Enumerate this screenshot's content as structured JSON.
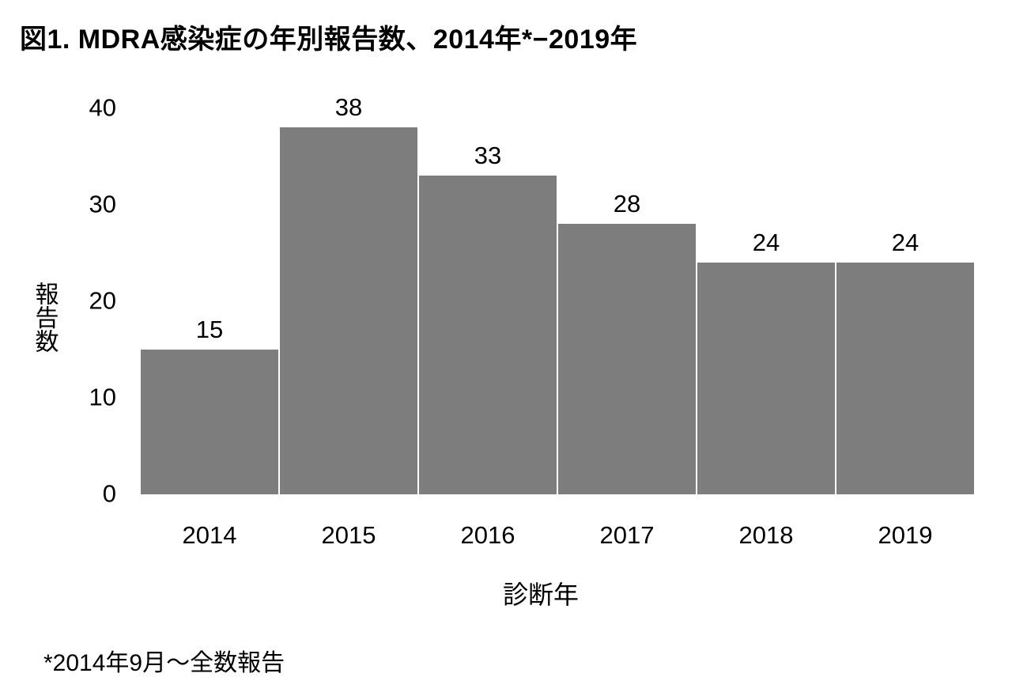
{
  "figure": {
    "title": "図1. MDRA感染症の年別報告数、2014年*−2019年",
    "footnote": "*2014年9月～全数報告"
  },
  "colors": {
    "background": "#ffffff",
    "bar": "#7d7d7d",
    "text": "#000000"
  },
  "chart_data": {
    "type": "bar",
    "title": "図1. MDRA感染症の年別報告数、2014年*−2019年",
    "categories": [
      "2014",
      "2015",
      "2016",
      "2017",
      "2018",
      "2019"
    ],
    "values": [
      15,
      38,
      33,
      28,
      24,
      24
    ],
    "data_labels": [
      "15",
      "38",
      "33",
      "28",
      "24",
      "24"
    ],
    "xlabel": "診断年",
    "ylabel": "報告数",
    "ylim": [
      0,
      40
    ],
    "yticks": [
      0,
      10,
      20,
      30,
      40
    ],
    "grid": false,
    "legend": false,
    "bar_color": "#7d7d7d",
    "footnote": "*2014年9月～全数報告"
  }
}
